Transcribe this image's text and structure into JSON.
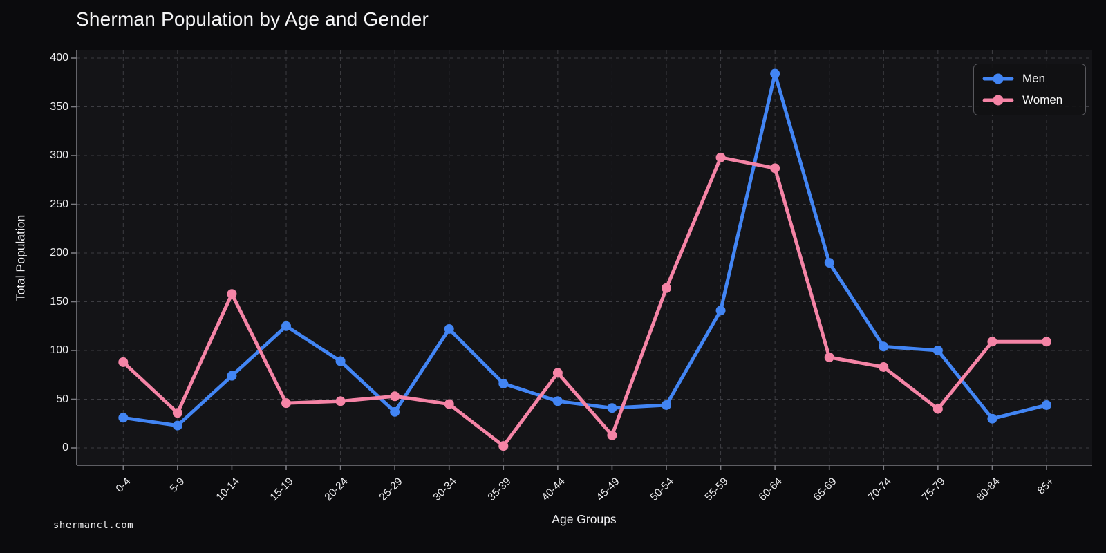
{
  "title": "Sherman Population by Age and Gender",
  "watermark": "shermanct.com",
  "chart_data": {
    "type": "line",
    "title": "Sherman Population by Age and Gender",
    "xlabel": "Age Groups",
    "ylabel": "Total Population",
    "categories": [
      "0-4",
      "5-9",
      "10-14",
      "15-19",
      "20-24",
      "25-29",
      "30-34",
      "35-39",
      "40-44",
      "45-49",
      "50-54",
      "55-59",
      "60-64",
      "65-69",
      "70-74",
      "75-79",
      "80-84",
      "85+"
    ],
    "series": [
      {
        "name": "Men",
        "color": "#4285F4",
        "values": [
          31,
          23,
          74,
          125,
          89,
          37,
          122,
          66,
          48,
          41,
          44,
          141,
          384,
          190,
          104,
          100,
          30,
          44
        ]
      },
      {
        "name": "Women",
        "color": "#F584A6",
        "values": [
          88,
          36,
          158,
          46,
          48,
          53,
          45,
          2,
          77,
          13,
          164,
          298,
          287,
          93,
          83,
          40,
          109,
          109
        ]
      }
    ],
    "yticks": [
      0,
      50,
      100,
      150,
      200,
      250,
      300,
      350,
      400
    ],
    "ylim": [
      0,
      400
    ],
    "grid": true,
    "grid_style": "dashed",
    "legend_position": "top-right",
    "background": "#0b0b0d",
    "plot_background": "#141417",
    "grid_color": "#3d3d42",
    "spine_color": "#7a7a80",
    "text_color": "#f4f4f5"
  }
}
